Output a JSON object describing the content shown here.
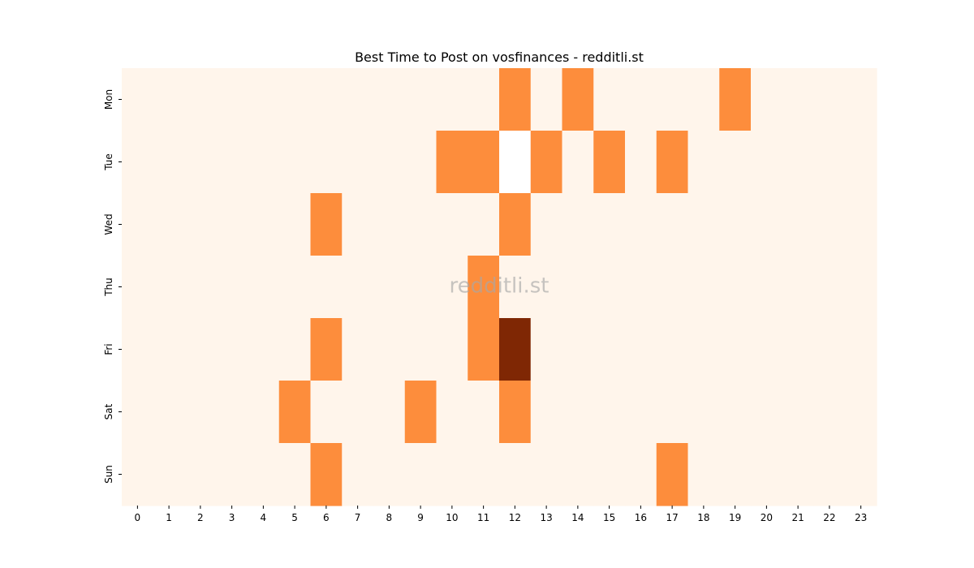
{
  "chart_data": {
    "type": "heatmap",
    "title": "Best Time to Post on vosfinances - redditli.st",
    "watermark": "redditli.st",
    "xlabel": "",
    "ylabel": "",
    "x_categories": [
      "0",
      "1",
      "2",
      "3",
      "4",
      "5",
      "6",
      "7",
      "8",
      "9",
      "10",
      "11",
      "12",
      "13",
      "14",
      "15",
      "16",
      "17",
      "18",
      "19",
      "20",
      "21",
      "22",
      "23"
    ],
    "y_categories": [
      "Mon",
      "Tue",
      "Wed",
      "Thu",
      "Fri",
      "Sat",
      "Sun"
    ],
    "values": [
      [
        0,
        0,
        0,
        0,
        0,
        0,
        0,
        0,
        0,
        0,
        0,
        0,
        1,
        0,
        1,
        0,
        0,
        0,
        0,
        1,
        0,
        0,
        0,
        0
      ],
      [
        0,
        0,
        0,
        0,
        0,
        0,
        0,
        0,
        0,
        0,
        1,
        1,
        0,
        1,
        0,
        1,
        0,
        1,
        0,
        0,
        0,
        0,
        0,
        0
      ],
      [
        0,
        0,
        0,
        0,
        0,
        0,
        1,
        0,
        0,
        0,
        0,
        0,
        1,
        0,
        0,
        0,
        0,
        0,
        0,
        0,
        0,
        0,
        0,
        0
      ],
      [
        0,
        0,
        0,
        0,
        0,
        0,
        0,
        0,
        0,
        0,
        0,
        1,
        0,
        0,
        0,
        0,
        0,
        0,
        0,
        0,
        0,
        0,
        0,
        0
      ],
      [
        0,
        0,
        0,
        0,
        0,
        0,
        1,
        0,
        0,
        0,
        0,
        1,
        2,
        0,
        0,
        0,
        0,
        0,
        0,
        0,
        0,
        0,
        0,
        0
      ],
      [
        0,
        0,
        0,
        0,
        0,
        1,
        0,
        0,
        0,
        1,
        0,
        0,
        1,
        0,
        0,
        0,
        0,
        0,
        0,
        0,
        0,
        0,
        0,
        0
      ],
      [
        0,
        0,
        0,
        0,
        0,
        0,
        1,
        0,
        0,
        0,
        0,
        0,
        0,
        0,
        0,
        0,
        0,
        1,
        0,
        0,
        0,
        0,
        0,
        0
      ]
    ],
    "value_range": [
      0,
      2
    ],
    "colormap": "Oranges",
    "color_scale": [
      "#fff5eb",
      "#fd8d3c",
      "#7f2704"
    ],
    "blank_cells": [
      [
        1,
        12
      ]
    ],
    "blank_color": "#ffffff",
    "colorbar": false,
    "grid": false
  }
}
